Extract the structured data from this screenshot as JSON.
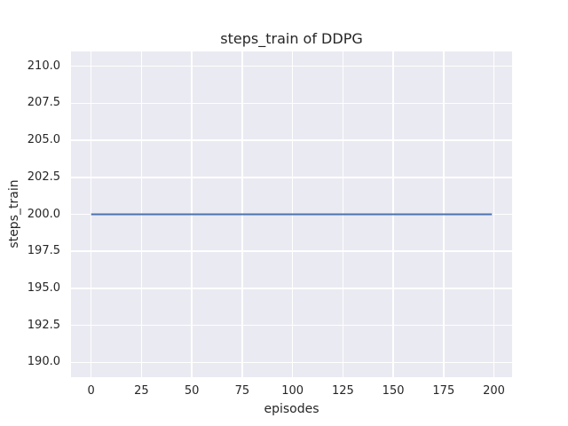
{
  "figure": {
    "title": "steps_train of DDPG",
    "xlabel": "episodes",
    "ylabel": "steps_train"
  },
  "chart_data": {
    "type": "line",
    "title": "steps_train of DDPG",
    "xlabel": "episodes",
    "ylabel": "steps_train",
    "xlim": [
      -10,
      209
    ],
    "ylim": [
      189,
      211
    ],
    "xticks": [
      0,
      25,
      50,
      75,
      100,
      125,
      150,
      175,
      200
    ],
    "xtick_labels": [
      "0",
      "25",
      "50",
      "75",
      "100",
      "125",
      "150",
      "175",
      "200"
    ],
    "yticks": [
      190.0,
      192.5,
      195.0,
      197.5,
      200.0,
      202.5,
      205.0,
      207.5,
      210.0
    ],
    "ytick_labels": [
      "190.0",
      "192.5",
      "195.0",
      "197.5",
      "200.0",
      "202.5",
      "205.0",
      "207.5",
      "210.0"
    ],
    "grid": true,
    "legend": "none",
    "series": [
      {
        "name": "steps_train",
        "color": "#4C72B0",
        "x": [
          0,
          199
        ],
        "y": [
          200,
          200
        ],
        "note": "constant value 200 for every episode from 0 to 199"
      }
    ],
    "colors": {
      "figure_bg": "#FFFFFF",
      "plot_bg": "#EAEAF2",
      "grid": "#FFFFFF",
      "text": "#262626",
      "line": "#4C72B0"
    }
  }
}
